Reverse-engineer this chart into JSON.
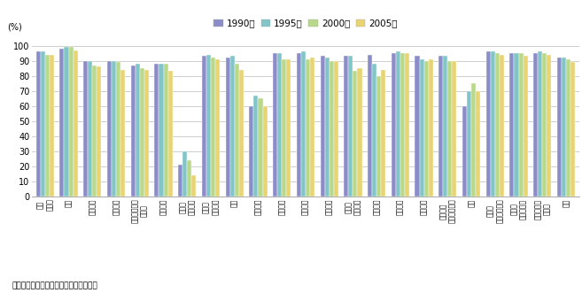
{
  "categories": [
    "農林\n水産業",
    "鉱業",
    "飲食料品",
    "繊維製品",
    "パルプ・紙・\n木製品",
    "化学製品",
    "石油・\n石灰製品",
    "窂業・\n土石製品",
    "鉄鉰",
    "非鉄金属",
    "金属製品",
    "一般機械",
    "電気機械",
    "情報・\n通信機器",
    "電子部品",
    "輸送機械",
    "精密機械",
    "その他の\n製造工業製品",
    "建設",
    "電力・\nガス・熱供給",
    "水道・\n廃棄物処理",
    "サービス・\nその他",
    "全体"
  ],
  "years": [
    "1990年",
    "1995年",
    "2000年",
    "2005年"
  ],
  "colors": [
    "#8b8dc8",
    "#82c5c8",
    "#b8d98a",
    "#e8d472"
  ],
  "values_1990": [
    96,
    98,
    90,
    90,
    87,
    88,
    21,
    93,
    92,
    60,
    95,
    95,
    93,
    93,
    94,
    95,
    93,
    93,
    60,
    96,
    95,
    95,
    92
  ],
  "values_1995": [
    96,
    99,
    90,
    90,
    88,
    88,
    30,
    94,
    93,
    67,
    95,
    96,
    92,
    93,
    88,
    96,
    91,
    93,
    70,
    96,
    95,
    96,
    92
  ],
  "values_2000": [
    94,
    99,
    87,
    89,
    85,
    88,
    24,
    92,
    88,
    65,
    91,
    91,
    90,
    83,
    80,
    95,
    90,
    90,
    75,
    95,
    95,
    95,
    91
  ],
  "values_2005": [
    94,
    97,
    86,
    84,
    84,
    83,
    14,
    91,
    84,
    60,
    91,
    92,
    90,
    85,
    84,
    95,
    91,
    90,
    70,
    94,
    93,
    94,
    89
  ],
  "ylim": [
    0,
    105
  ],
  "yticks": [
    0,
    10,
    20,
    30,
    40,
    50,
    60,
    70,
    80,
    90,
    100
  ],
  "footnote": "資料：総務省『産業連関表』から作成。"
}
